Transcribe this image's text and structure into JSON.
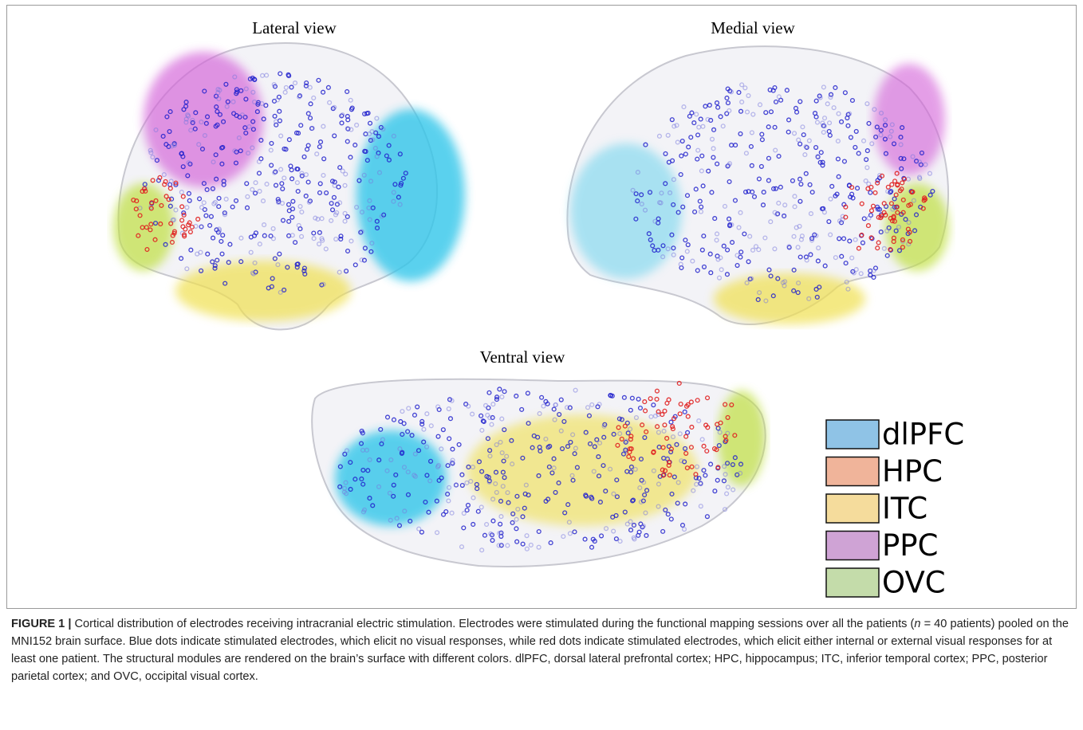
{
  "panels": [
    {
      "title": "Lateral view"
    },
    {
      "title": "Medial view"
    },
    {
      "title": "Ventral view"
    }
  ],
  "legend": [
    {
      "label": "dlPFC",
      "color": "#8fc3e6"
    },
    {
      "label": "HPC",
      "color": "#f0b49a"
    },
    {
      "label": "ITC",
      "color": "#f5dc9c"
    },
    {
      "label": "PPC",
      "color": "#cfa3d5"
    },
    {
      "label": "OVC",
      "color": "#c4dcaa"
    }
  ],
  "caption": {
    "label": "FIGURE 1 |",
    "text_1": " Cortical distribution of electrodes receiving intracranial electric stimulation. Electrodes were stimulated during the functional mapping sessions over all the patients (",
    "italic": "n",
    "text_2": " = 40 patients) pooled on the MNI152 brain surface. Blue dots indicate stimulated electrodes, which elicit no visual responses, while red dots indicate stimulated electrodes, which elicit either internal or external visual responses for at least one patient. The structural modules are rendered on the brain’s surface with different colors. dlPFC, dorsal lateral prefrontal cortex; HPC, hippocampus; ITC, inferior temporal cortex; PPC, posterior parietal cortex; and OVC, occipital visual cortex."
  }
}
